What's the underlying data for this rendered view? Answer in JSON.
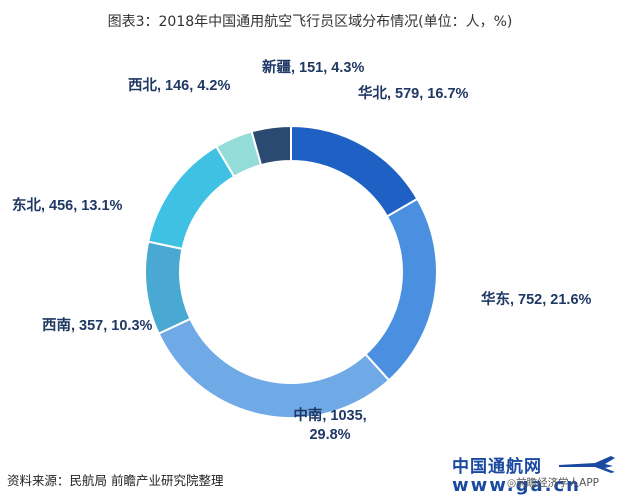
{
  "title": "图表3：2018年中国通用航空飞行员区域分布情况(单位：人，%)",
  "source": "资料来源：民航局 前瞻产业研究院整理",
  "logo": {
    "cn": "中国通航网",
    "url": "www.ga.cn"
  },
  "app_mark": "◎前瞻经济学人APP",
  "chart_data": {
    "type": "pie",
    "subtype": "donut",
    "title": "图表3：2018年中国通用航空飞行员区域分布情况(单位：人，%)",
    "unit": "人",
    "slices": [
      {
        "name": "华北",
        "value": 579,
        "percent": 16.7,
        "color": "#1f60c4",
        "label": "华北, 579, 16.7%"
      },
      {
        "name": "华东",
        "value": 752,
        "percent": 21.6,
        "color": "#4a8fe0",
        "label": "华东, 752, 21.6%"
      },
      {
        "name": "中南",
        "value": 1035,
        "percent": 29.8,
        "color": "#6fa9e6",
        "label_lines": [
          "中南, 1035,",
          "29.8%"
        ]
      },
      {
        "name": "西南",
        "value": 357,
        "percent": 10.3,
        "color": "#4aa9d2",
        "label": "西南, 357, 10.3%"
      },
      {
        "name": "东北",
        "value": 456,
        "percent": 13.1,
        "color": "#3ec1e2",
        "label": "东北, 456, 13.1%"
      },
      {
        "name": "西北",
        "value": 146,
        "percent": 4.2,
        "color": "#93dcd8",
        "label": "西北, 146, 4.2%"
      },
      {
        "name": "新疆",
        "value": 151,
        "percent": 4.3,
        "color": "#2b4a72",
        "label": "新疆, 151, 4.3%"
      }
    ],
    "start_angle_deg": 0,
    "direction": "clockwise"
  }
}
